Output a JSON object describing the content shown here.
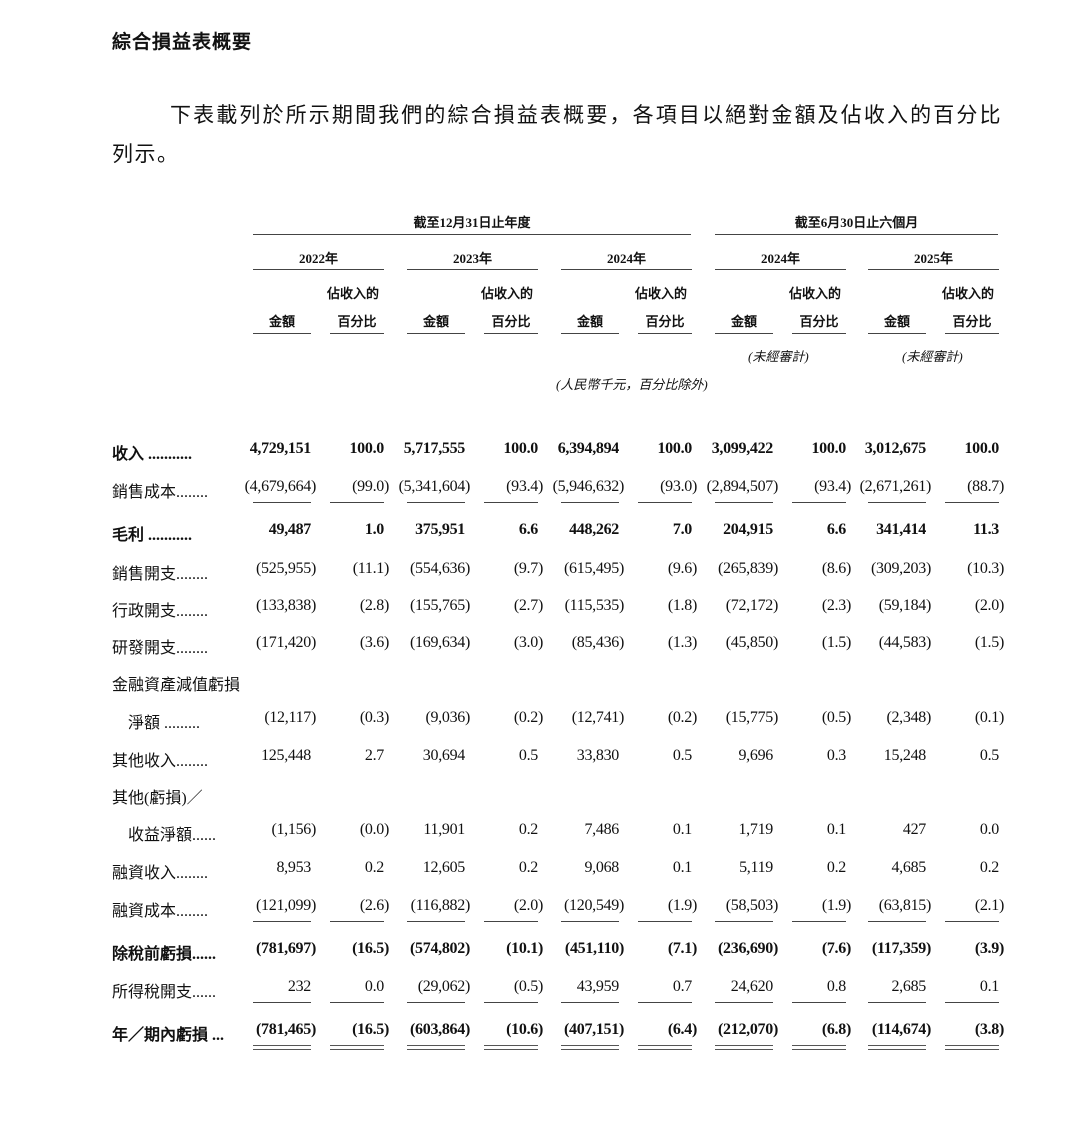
{
  "title": "綜合損益表概要",
  "intro": "下表載列於所示期間我們的綜合損益表概要，各項目以絕對金額及佔收入的百分比列示。",
  "header": {
    "group_annual": "截至12月31日止年度",
    "group_interim": "截至6月30日止六個月",
    "years": [
      "2022年",
      "2023年",
      "2024年",
      "2024年",
      "2025年"
    ],
    "col_amount": "金額",
    "col_pct_line1": "佔收入的",
    "col_pct_line2": "百分比",
    "unaudited": "(未經審計)",
    "unit_note": "(人民幣千元，百分比除外)"
  },
  "rows": [
    {
      "label": "收入 ...........",
      "bold": true,
      "values": [
        "4,729,151",
        "100.0",
        "5,717,555",
        "100.0",
        "6,394,894",
        "100.0",
        "3,099,422",
        "100.0",
        "3,012,675",
        "100.0"
      ]
    },
    {
      "label": "銷售成本........",
      "bold": false,
      "underline": "single",
      "values": [
        "(4,679,664)",
        "(99.0)",
        "(5,341,604)",
        "(93.4)",
        "(5,946,632)",
        "(93.0)",
        "(2,894,507)",
        "(93.4)",
        "(2,671,261)",
        "(88.7)"
      ]
    },
    {
      "label": "毛利 ...........",
      "bold": true,
      "values": [
        "49,487",
        "1.0",
        "375,951",
        "6.6",
        "448,262",
        "7.0",
        "204,915",
        "6.6",
        "341,414",
        "11.3"
      ]
    },
    {
      "label": "銷售開支........",
      "bold": false,
      "values": [
        "(525,955)",
        "(11.1)",
        "(554,636)",
        "(9.7)",
        "(615,495)",
        "(9.6)",
        "(265,839)",
        "(8.6)",
        "(309,203)",
        "(10.3)"
      ]
    },
    {
      "label": "行政開支........",
      "bold": false,
      "values": [
        "(133,838)",
        "(2.8)",
        "(155,765)",
        "(2.7)",
        "(115,535)",
        "(1.8)",
        "(72,172)",
        "(2.3)",
        "(59,184)",
        "(2.0)"
      ]
    },
    {
      "label": "研發開支........",
      "bold": false,
      "values": [
        "(171,420)",
        "(3.6)",
        "(169,634)",
        "(3.0)",
        "(85,436)",
        "(1.3)",
        "(45,850)",
        "(1.5)",
        "(44,583)",
        "(1.5)"
      ]
    },
    {
      "label": "金融資產減值虧損",
      "bold": false,
      "values": []
    },
    {
      "label": "　淨額 .........",
      "bold": false,
      "values": [
        "(12,117)",
        "(0.3)",
        "(9,036)",
        "(0.2)",
        "(12,741)",
        "(0.2)",
        "(15,775)",
        "(0.5)",
        "(2,348)",
        "(0.1)"
      ]
    },
    {
      "label": "其他收入........",
      "bold": false,
      "values": [
        "125,448",
        "2.7",
        "30,694",
        "0.5",
        "33,830",
        "0.5",
        "9,696",
        "0.3",
        "15,248",
        "0.5"
      ]
    },
    {
      "label": "其他(虧損)／",
      "bold": false,
      "values": []
    },
    {
      "label": "　收益淨額......",
      "bold": false,
      "values": [
        "(1,156)",
        "(0.0)",
        "11,901",
        "0.2",
        "7,486",
        "0.1",
        "1,719",
        "0.1",
        "427",
        "0.0"
      ]
    },
    {
      "label": "融資收入........",
      "bold": false,
      "values": [
        "8,953",
        "0.2",
        "12,605",
        "0.2",
        "9,068",
        "0.1",
        "5,119",
        "0.2",
        "4,685",
        "0.2"
      ]
    },
    {
      "label": "融資成本........",
      "bold": false,
      "underline": "single",
      "values": [
        "(121,099)",
        "(2.6)",
        "(116,882)",
        "(2.0)",
        "(120,549)",
        "(1.9)",
        "(58,503)",
        "(1.9)",
        "(63,815)",
        "(2.1)"
      ]
    },
    {
      "label": "除稅前虧損......",
      "bold": true,
      "values": [
        "(781,697)",
        "(16.5)",
        "(574,802)",
        "(10.1)",
        "(451,110)",
        "(7.1)",
        "(236,690)",
        "(7.6)",
        "(117,359)",
        "(3.9)"
      ]
    },
    {
      "label": "所得稅開支......",
      "bold": false,
      "underline": "single",
      "values": [
        "232",
        "0.0",
        "(29,062)",
        "(0.5)",
        "43,959",
        "0.7",
        "24,620",
        "0.8",
        "2,685",
        "0.1"
      ]
    },
    {
      "label": "年／期內虧損 ...",
      "bold": true,
      "underline": "double",
      "values": [
        "(781,465)",
        "(16.5)",
        "(603,864)",
        "(10.6)",
        "(407,151)",
        "(6.4)",
        "(212,070)",
        "(6.8)",
        "(114,674)",
        "(3.8)"
      ]
    }
  ]
}
